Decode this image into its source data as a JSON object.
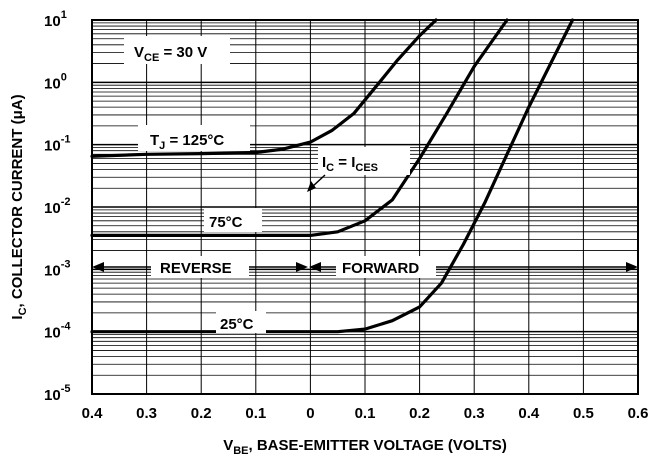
{
  "chart_data": {
    "type": "line",
    "title": "",
    "xlabel": {
      "main": "V",
      "sub": "BE",
      "rest": ", BASE-EMITTER VOLTAGE (VOLTS)"
    },
    "ylabel": {
      "main": "I",
      "sub": "C",
      "rest": ", COLLECTOR CURRENT (μA)"
    },
    "x_tick_labels": [
      "0.4",
      "0.3",
      "0.2",
      "0.1",
      "0",
      "0.1",
      "0.2",
      "0.3",
      "0.4",
      "0.5",
      "0.6"
    ],
    "x_axis_note": "Axis runs from reverse-bias 0.4 V (left) through 0 to forward-bias 0.6 V (right); x values below are signed VBE in volts (negative = reverse).",
    "xlim": [
      -0.4,
      0.6
    ],
    "y_scale": "log",
    "ylim": [
      1e-05,
      10
    ],
    "y_ticks": [
      {
        "base": "10",
        "exp": "1"
      },
      {
        "base": "10",
        "exp": "0"
      },
      {
        "base": "10",
        "exp": "-1"
      },
      {
        "base": "10",
        "exp": "-2"
      },
      {
        "base": "10",
        "exp": "-3"
      },
      {
        "base": "10",
        "exp": "-4"
      },
      {
        "base": "10",
        "exp": "-5"
      }
    ],
    "grid": true,
    "series": [
      {
        "name": "TJ = 125°C",
        "x": [
          -0.4,
          -0.3,
          -0.2,
          -0.1,
          -0.05,
          0.0,
          0.04,
          0.08,
          0.12,
          0.16,
          0.2,
          0.23
        ],
        "y": [
          0.065,
          0.07,
          0.072,
          0.075,
          0.085,
          0.11,
          0.17,
          0.32,
          0.85,
          2.3,
          5.6,
          10
        ]
      },
      {
        "name": "75°C",
        "x": [
          -0.4,
          -0.2,
          -0.1,
          0.0,
          0.05,
          0.1,
          0.15,
          0.2,
          0.25,
          0.3,
          0.36
        ],
        "y": [
          0.0035,
          0.0035,
          0.0035,
          0.0035,
          0.004,
          0.006,
          0.013,
          0.06,
          0.32,
          1.8,
          10
        ]
      },
      {
        "name": "25°C",
        "x": [
          -0.4,
          -0.2,
          0.0,
          0.05,
          0.1,
          0.15,
          0.2,
          0.24,
          0.28,
          0.32,
          0.36,
          0.4,
          0.44,
          0.48
        ],
        "y": [
          0.0001,
          0.0001,
          0.0001,
          0.0001,
          0.00011,
          0.00015,
          0.00025,
          0.0006,
          0.0025,
          0.012,
          0.07,
          0.4,
          2.0,
          10
        ]
      }
    ],
    "annotations": {
      "vce": {
        "main": "V",
        "sub": "CE",
        "rest": " = 30 V"
      },
      "tj": {
        "main": "T",
        "sub": "J",
        "rest": " = 125°C"
      },
      "t75": "75°C",
      "t25": "25°C",
      "ic": {
        "a": "I",
        "asub": "C",
        "mid": " = I",
        "bsub": "CES"
      },
      "reverse": "REVERSE",
      "forward": "FORWARD"
    }
  }
}
